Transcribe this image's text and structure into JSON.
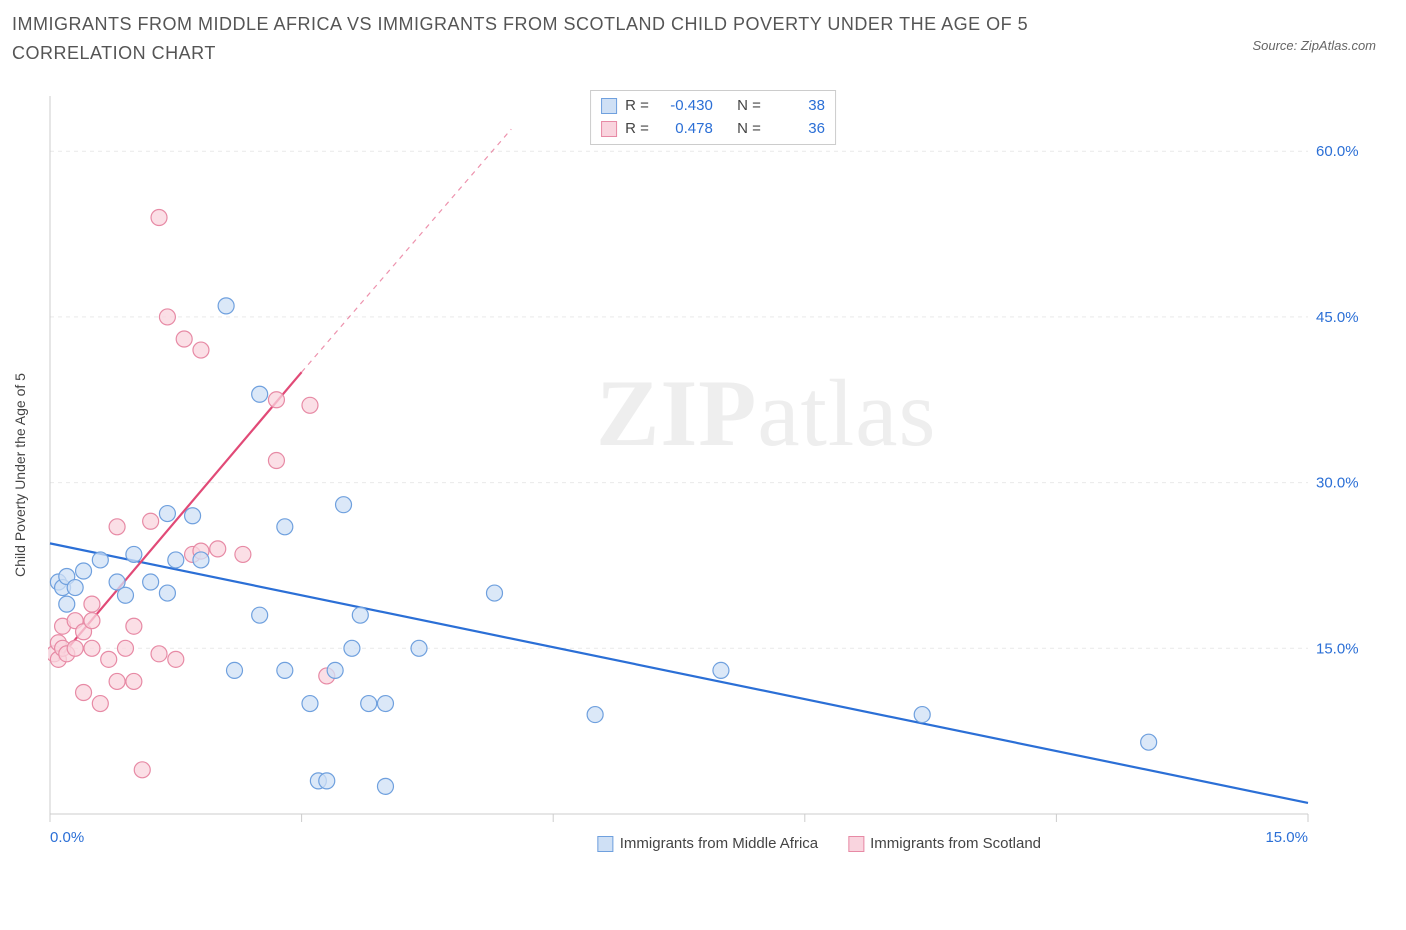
{
  "title": "IMMIGRANTS FROM MIDDLE AFRICA VS IMMIGRANTS FROM SCOTLAND CHILD POVERTY UNDER THE AGE OF 5 CORRELATION CHART",
  "source": "Source: ZipAtlas.com",
  "y_label": "Child Poverty Under the Age of 5",
  "watermark_a": "ZIP",
  "watermark_b": "atlas",
  "chart": {
    "type": "scatter",
    "background_color": "#ffffff",
    "grid_color": "#e9e9e9",
    "axis_color": "#cccccc",
    "x_domain": [
      0,
      15
    ],
    "y_domain": [
      0,
      65
    ],
    "x_ticks": [
      0,
      3,
      6,
      9,
      12,
      15
    ],
    "x_tick_labels": {
      "0": "0.0%",
      "15": "15.0%"
    },
    "y_right_ticks": [
      15,
      30,
      45,
      60
    ],
    "y_right_labels": [
      "15.0%",
      "30.0%",
      "45.0%",
      "60.0%"
    ],
    "tick_label_color": "#2b6fd6",
    "tick_label_fontsize": 15,
    "series": [
      {
        "name": "Immigrants from Middle Africa",
        "key": "middle_africa",
        "fill": "#cfe0f5",
        "stroke": "#6fa0de",
        "marker_radius": 8,
        "line_color": "#2b6fd6",
        "line_width": 2.2,
        "r_value": "-0.430",
        "n_value": "38",
        "trend": {
          "x1": 0,
          "y1": 24.5,
          "x2": 15,
          "y2": 1.0
        },
        "points": [
          [
            0.1,
            21.0
          ],
          [
            0.15,
            20.5
          ],
          [
            0.2,
            21.5
          ],
          [
            0.2,
            19.0
          ],
          [
            0.3,
            20.5
          ],
          [
            0.4,
            22.0
          ],
          [
            0.6,
            23.0
          ],
          [
            0.8,
            21.0
          ],
          [
            0.9,
            19.8
          ],
          [
            1.0,
            23.5
          ],
          [
            1.2,
            21.0
          ],
          [
            1.4,
            27.2
          ],
          [
            1.4,
            20.0
          ],
          [
            1.5,
            23.0
          ],
          [
            1.7,
            27.0
          ],
          [
            1.8,
            23.0
          ],
          [
            2.1,
            46.0
          ],
          [
            2.2,
            13.0
          ],
          [
            2.5,
            38.0
          ],
          [
            2.5,
            18.0
          ],
          [
            2.8,
            13.0
          ],
          [
            2.8,
            26.0
          ],
          [
            3.1,
            10.0
          ],
          [
            3.2,
            3.0
          ],
          [
            3.3,
            3.0
          ],
          [
            3.4,
            13.0
          ],
          [
            3.5,
            28.0
          ],
          [
            3.6,
            15.0
          ],
          [
            3.7,
            18.0
          ],
          [
            3.8,
            10.0
          ],
          [
            4.0,
            10.0
          ],
          [
            4.0,
            2.5
          ],
          [
            4.4,
            15.0
          ],
          [
            5.3,
            20.0
          ],
          [
            6.5,
            9.0
          ],
          [
            8.0,
            13.0
          ],
          [
            10.4,
            9.0
          ],
          [
            13.1,
            6.5
          ]
        ]
      },
      {
        "name": "Immigrants from Scotland",
        "key": "scotland",
        "fill": "#f9d4de",
        "stroke": "#e78aa5",
        "marker_radius": 8,
        "line_color": "#e14a77",
        "line_width": 2.2,
        "r_value": "0.478",
        "n_value": "36",
        "trend_solid": {
          "x1": 0.1,
          "y1": 14.0,
          "x2": 3.0,
          "y2": 40.0
        },
        "trend_dash": {
          "x1": 3.0,
          "y1": 40.0,
          "x2": 5.5,
          "y2": 62.0
        },
        "points": [
          [
            0.05,
            14.5
          ],
          [
            0.1,
            14.0
          ],
          [
            0.1,
            15.5
          ],
          [
            0.15,
            15.0
          ],
          [
            0.15,
            17.0
          ],
          [
            0.2,
            14.5
          ],
          [
            0.3,
            15.0
          ],
          [
            0.3,
            17.5
          ],
          [
            0.4,
            16.5
          ],
          [
            0.4,
            11.0
          ],
          [
            0.5,
            17.5
          ],
          [
            0.5,
            15.0
          ],
          [
            0.5,
            19.0
          ],
          [
            0.6,
            10.0
          ],
          [
            0.7,
            14.0
          ],
          [
            0.8,
            26.0
          ],
          [
            0.8,
            12.0
          ],
          [
            0.9,
            15.0
          ],
          [
            1.0,
            12.0
          ],
          [
            1.0,
            17.0
          ],
          [
            1.1,
            4.0
          ],
          [
            1.2,
            26.5
          ],
          [
            1.3,
            14.5
          ],
          [
            1.3,
            54.0
          ],
          [
            1.4,
            45.0
          ],
          [
            1.5,
            14.0
          ],
          [
            1.6,
            43.0
          ],
          [
            1.7,
            23.5
          ],
          [
            1.8,
            23.8
          ],
          [
            1.8,
            42.0
          ],
          [
            2.0,
            24.0
          ],
          [
            2.3,
            23.5
          ],
          [
            2.7,
            32.0
          ],
          [
            2.7,
            37.5
          ],
          [
            3.1,
            37.0
          ],
          [
            3.3,
            12.5
          ]
        ]
      }
    ]
  },
  "legend_labels": {
    "r": "R =",
    "n": "N ="
  },
  "bottom_legend": {
    "series1": "Immigrants from Middle Africa",
    "series2": "Immigrants from Scotland"
  }
}
